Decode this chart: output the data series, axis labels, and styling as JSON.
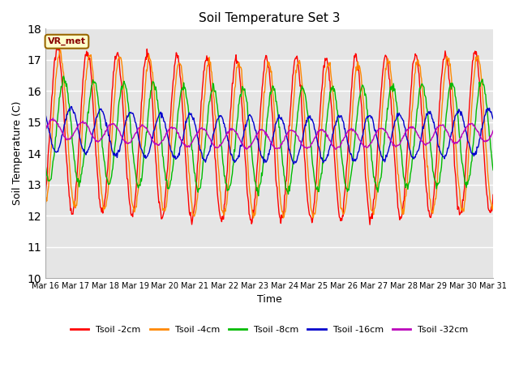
{
  "title": "Soil Temperature Set 3",
  "xlabel": "Time",
  "ylabel": "Soil Temperature (C)",
  "ylim": [
    10.0,
    18.0
  ],
  "yticks": [
    10.0,
    11.0,
    12.0,
    13.0,
    14.0,
    15.0,
    16.0,
    17.0,
    18.0
  ],
  "xtick_labels": [
    "Mar 16",
    "Mar 17",
    "Mar 18",
    "Mar 19",
    "Mar 20",
    "Mar 21",
    "Mar 22",
    "Mar 23",
    "Mar 24",
    "Mar 25",
    "Mar 26",
    "Mar 27",
    "Mar 28",
    "Mar 29",
    "Mar 30",
    "Mar 31"
  ],
  "annotation_text": "VR_met",
  "annotation_bg": "#ffffcc",
  "annotation_border": "#996600",
  "annotation_text_color": "#880000",
  "bg_color": "#e5e5e5",
  "series_colors": [
    "#ff0000",
    "#ff8800",
    "#00bb00",
    "#0000cc",
    "#bb00bb"
  ],
  "series_labels": [
    "Tsoil -2cm",
    "Tsoil -4cm",
    "Tsoil -8cm",
    "Tsoil -16cm",
    "Tsoil -32cm"
  ],
  "n_days": 15,
  "points_per_day": 48
}
